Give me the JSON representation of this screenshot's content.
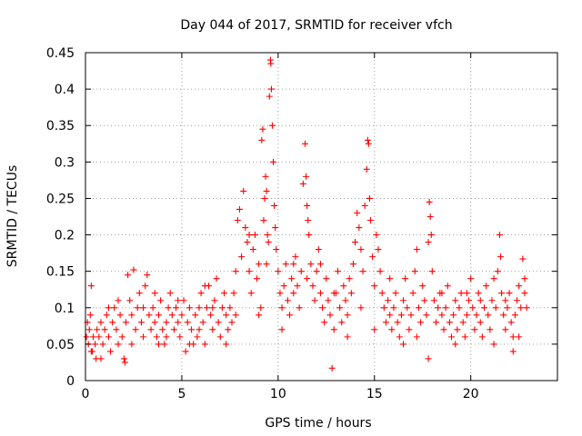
{
  "chart_data": {
    "type": "scatter",
    "title": "Day 044 of 2017, SRMTID for receiver vfch",
    "xlabel": "GPS time / hours",
    "ylabel": "SRMTID / TECUs",
    "xlim": [
      0,
      24.5
    ],
    "ylim": [
      0,
      0.45
    ],
    "xticks": [
      0,
      5,
      10,
      15,
      20
    ],
    "yticks": [
      0,
      0.05,
      0.1,
      0.15,
      0.2,
      0.25,
      0.3,
      0.35,
      0.4,
      0.45
    ],
    "xtick_labels": [
      "0",
      "5",
      "10",
      "15",
      "20"
    ],
    "ytick_labels": [
      "0",
      "0.05",
      "0.1",
      "0.15",
      "0.2",
      "0.25",
      "0.3",
      "0.35",
      "0.4",
      "0.45"
    ],
    "grid": true,
    "marker": "+",
    "color": "#ff0000",
    "series": [
      {
        "name": "SRMTID",
        "points": [
          [
            0.05,
            0.06
          ],
          [
            0.1,
            0.08
          ],
          [
            0.15,
            0.05
          ],
          [
            0.2,
            0.07
          ],
          [
            0.25,
            0.09
          ],
          [
            0.3,
            0.13
          ],
          [
            0.35,
            0.04
          ],
          [
            0.4,
            0.06
          ],
          [
            0.5,
            0.05
          ],
          [
            0.55,
            0.03
          ],
          [
            0.6,
            0.07
          ],
          [
            0.7,
            0.06
          ],
          [
            0.8,
            0.08
          ],
          [
            0.9,
            0.05
          ],
          [
            1.0,
            0.07
          ],
          [
            1.1,
            0.09
          ],
          [
            1.2,
            0.06
          ],
          [
            1.3,
            0.04
          ],
          [
            1.4,
            0.08
          ],
          [
            1.5,
            0.1
          ],
          [
            1.6,
            0.07
          ],
          [
            1.7,
            0.05
          ],
          [
            1.8,
            0.09
          ],
          [
            1.9,
            0.06
          ],
          [
            2.0,
            0.03
          ],
          [
            2.05,
            0.025
          ],
          [
            2.1,
            0.08
          ],
          [
            2.2,
            0.145
          ],
          [
            2.3,
            0.11
          ],
          [
            2.4,
            0.09
          ],
          [
            2.5,
            0.152
          ],
          [
            2.6,
            0.07
          ],
          [
            2.7,
            0.1
          ],
          [
            2.8,
            0.12
          ],
          [
            2.9,
            0.08
          ],
          [
            3.0,
            0.06
          ],
          [
            3.1,
            0.13
          ],
          [
            3.2,
            0.145
          ],
          [
            3.3,
            0.09
          ],
          [
            3.4,
            0.07
          ],
          [
            3.5,
            0.1
          ],
          [
            3.6,
            0.08
          ],
          [
            3.7,
            0.06
          ],
          [
            3.8,
            0.09
          ],
          [
            3.9,
            0.11
          ],
          [
            4.0,
            0.07
          ],
          [
            4.1,
            0.05
          ],
          [
            4.2,
            0.08
          ],
          [
            4.3,
            0.1
          ],
          [
            4.4,
            0.12
          ],
          [
            4.5,
            0.09
          ],
          [
            4.6,
            0.07
          ],
          [
            4.7,
            0.1
          ],
          [
            4.8,
            0.08
          ],
          [
            4.9,
            0.06
          ],
          [
            5.0,
            0.09
          ],
          [
            5.1,
            0.11
          ],
          [
            5.2,
            0.04
          ],
          [
            5.3,
            0.08
          ],
          [
            5.4,
            0.1
          ],
          [
            5.5,
            0.07
          ],
          [
            5.6,
            0.05
          ],
          [
            5.7,
            0.09
          ],
          [
            5.8,
            0.06
          ],
          [
            5.9,
            0.1
          ],
          [
            6.0,
            0.12
          ],
          [
            6.1,
            0.08
          ],
          [
            6.2,
            0.05
          ],
          [
            6.3,
            0.1
          ],
          [
            6.4,
            0.13
          ],
          [
            6.5,
            0.09
          ],
          [
            6.6,
            0.07
          ],
          [
            6.7,
            0.11
          ],
          [
            6.8,
            0.14
          ],
          [
            6.9,
            0.08
          ],
          [
            7.0,
            0.06
          ],
          [
            7.1,
            0.1
          ],
          [
            7.2,
            0.12
          ],
          [
            7.3,
            0.09
          ],
          [
            7.4,
            0.07
          ],
          [
            7.5,
            0.1
          ],
          [
            7.6,
            0.08
          ],
          [
            7.7,
            0.12
          ],
          [
            7.8,
            0.15
          ],
          [
            7.9,
            0.22
          ],
          [
            8.0,
            0.235
          ],
          [
            8.1,
            0.17
          ],
          [
            8.2,
            0.26
          ],
          [
            8.3,
            0.21
          ],
          [
            8.4,
            0.19
          ],
          [
            8.5,
            0.15
          ],
          [
            8.6,
            0.12
          ],
          [
            8.7,
            0.18
          ],
          [
            8.8,
            0.2
          ],
          [
            8.9,
            0.14
          ],
          [
            9.0,
            0.16
          ],
          [
            9.1,
            0.1
          ],
          [
            9.15,
            0.33
          ],
          [
            9.2,
            0.345
          ],
          [
            9.25,
            0.22
          ],
          [
            9.3,
            0.25
          ],
          [
            9.35,
            0.28
          ],
          [
            9.4,
            0.26
          ],
          [
            9.45,
            0.2
          ],
          [
            9.5,
            0.19
          ],
          [
            9.55,
            0.39
          ],
          [
            9.6,
            0.44
          ],
          [
            9.62,
            0.435
          ],
          [
            9.65,
            0.4
          ],
          [
            9.7,
            0.35
          ],
          [
            9.75,
            0.3
          ],
          [
            9.8,
            0.24
          ],
          [
            9.85,
            0.21
          ],
          [
            9.9,
            0.18
          ],
          [
            10.0,
            0.15
          ],
          [
            10.1,
            0.12
          ],
          [
            10.2,
            0.1
          ],
          [
            10.3,
            0.13
          ],
          [
            10.4,
            0.16
          ],
          [
            10.5,
            0.11
          ],
          [
            10.6,
            0.09
          ],
          [
            10.7,
            0.14
          ],
          [
            10.8,
            0.12
          ],
          [
            10.9,
            0.17
          ],
          [
            11.0,
            0.13
          ],
          [
            11.1,
            0.1
          ],
          [
            11.2,
            0.15
          ],
          [
            11.3,
            0.27
          ],
          [
            11.4,
            0.325
          ],
          [
            11.45,
            0.28
          ],
          [
            11.5,
            0.24
          ],
          [
            11.55,
            0.22
          ],
          [
            11.6,
            0.2
          ],
          [
            11.7,
            0.16
          ],
          [
            11.8,
            0.13
          ],
          [
            11.9,
            0.11
          ],
          [
            12.0,
            0.15
          ],
          [
            12.1,
            0.18
          ],
          [
            12.2,
            0.12
          ],
          [
            12.3,
            0.1
          ],
          [
            12.4,
            0.08
          ],
          [
            12.5,
            0.14
          ],
          [
            12.6,
            0.11
          ],
          [
            12.7,
            0.09
          ],
          [
            12.8,
            0.017
          ],
          [
            12.9,
            0.07
          ],
          [
            13.0,
            0.12
          ],
          [
            13.1,
            0.15
          ],
          [
            13.2,
            0.1
          ],
          [
            13.3,
            0.08
          ],
          [
            13.4,
            0.13
          ],
          [
            13.5,
            0.11
          ],
          [
            13.6,
            0.09
          ],
          [
            13.7,
            0.14
          ],
          [
            13.8,
            0.12
          ],
          [
            13.9,
            0.16
          ],
          [
            14.0,
            0.19
          ],
          [
            14.1,
            0.23
          ],
          [
            14.2,
            0.21
          ],
          [
            14.3,
            0.18
          ],
          [
            14.4,
            0.15
          ],
          [
            14.5,
            0.24
          ],
          [
            14.6,
            0.29
          ],
          [
            14.65,
            0.33
          ],
          [
            14.7,
            0.325
          ],
          [
            14.75,
            0.25
          ],
          [
            14.8,
            0.22
          ],
          [
            14.9,
            0.17
          ],
          [
            15.0,
            0.13
          ],
          [
            15.1,
            0.2
          ],
          [
            15.2,
            0.18
          ],
          [
            15.3,
            0.15
          ],
          [
            15.4,
            0.12
          ],
          [
            15.5,
            0.1
          ],
          [
            15.6,
            0.08
          ],
          [
            15.7,
            0.11
          ],
          [
            15.8,
            0.09
          ],
          [
            15.9,
            0.07
          ],
          [
            16.0,
            0.1
          ],
          [
            16.1,
            0.12
          ],
          [
            16.2,
            0.08
          ],
          [
            16.3,
            0.06
          ],
          [
            16.4,
            0.09
          ],
          [
            16.5,
            0.11
          ],
          [
            16.6,
            0.14
          ],
          [
            16.7,
            0.1
          ],
          [
            16.8,
            0.07
          ],
          [
            16.9,
            0.09
          ],
          [
            17.0,
            0.12
          ],
          [
            17.1,
            0.15
          ],
          [
            17.2,
            0.18
          ],
          [
            17.3,
            0.1
          ],
          [
            17.4,
            0.08
          ],
          [
            17.5,
            0.13
          ],
          [
            17.6,
            0.11
          ],
          [
            17.7,
            0.09
          ],
          [
            17.8,
            0.19
          ],
          [
            17.85,
            0.245
          ],
          [
            17.9,
            0.225
          ],
          [
            17.95,
            0.2
          ],
          [
            18.0,
            0.15
          ],
          [
            18.1,
            0.11
          ],
          [
            18.2,
            0.08
          ],
          [
            18.3,
            0.1
          ],
          [
            18.4,
            0.12
          ],
          [
            18.5,
            0.09
          ],
          [
            18.6,
            0.07
          ],
          [
            18.7,
            0.1
          ],
          [
            18.8,
            0.13
          ],
          [
            18.9,
            0.08
          ],
          [
            19.0,
            0.06
          ],
          [
            19.1,
            0.09
          ],
          [
            19.2,
            0.11
          ],
          [
            19.3,
            0.07
          ],
          [
            19.4,
            0.1
          ],
          [
            19.5,
            0.12
          ],
          [
            19.6,
            0.08
          ],
          [
            19.7,
            0.06
          ],
          [
            19.8,
            0.09
          ],
          [
            19.9,
            0.11
          ],
          [
            20.0,
            0.14
          ],
          [
            20.1,
            0.1
          ],
          [
            20.2,
            0.07
          ],
          [
            20.3,
            0.09
          ],
          [
            20.4,
            0.12
          ],
          [
            20.5,
            0.08
          ],
          [
            20.6,
            0.06
          ],
          [
            20.7,
            0.1
          ],
          [
            20.8,
            0.13
          ],
          [
            20.9,
            0.09
          ],
          [
            21.0,
            0.07
          ],
          [
            21.1,
            0.11
          ],
          [
            21.2,
            0.14
          ],
          [
            21.3,
            0.1
          ],
          [
            21.4,
            0.15
          ],
          [
            21.5,
            0.2
          ],
          [
            21.55,
            0.17
          ],
          [
            21.6,
            0.12
          ],
          [
            21.7,
            0.09
          ],
          [
            21.8,
            0.07
          ],
          [
            21.9,
            0.1
          ],
          [
            22.0,
            0.12
          ],
          [
            22.1,
            0.08
          ],
          [
            22.2,
            0.06
          ],
          [
            22.3,
            0.09
          ],
          [
            22.4,
            0.11
          ],
          [
            22.5,
            0.13
          ],
          [
            22.6,
            0.1
          ],
          [
            22.7,
            0.167
          ],
          [
            22.8,
            0.12
          ],
          [
            22.9,
            0.1
          ],
          [
            0.3,
            0.04
          ],
          [
            0.8,
            0.03
          ],
          [
            1.2,
            0.1
          ],
          [
            1.7,
            0.11
          ],
          [
            2.4,
            0.05
          ],
          [
            3.0,
            0.1
          ],
          [
            3.6,
            0.12
          ],
          [
            4.2,
            0.06
          ],
          [
            4.8,
            0.11
          ],
          [
            5.4,
            0.05
          ],
          [
            5.9,
            0.07
          ],
          [
            6.6,
            0.1
          ],
          [
            7.3,
            0.05
          ],
          [
            7.8,
            0.09
          ],
          [
            8.5,
            0.2
          ],
          [
            9.0,
            0.09
          ],
          [
            9.4,
            0.16
          ],
          [
            10.2,
            0.07
          ],
          [
            10.8,
            0.16
          ],
          [
            11.5,
            0.14
          ],
          [
            12.2,
            0.16
          ],
          [
            12.9,
            0.12
          ],
          [
            13.6,
            0.06
          ],
          [
            14.3,
            0.1
          ],
          [
            15.0,
            0.07
          ],
          [
            15.8,
            0.14
          ],
          [
            16.5,
            0.05
          ],
          [
            17.2,
            0.06
          ],
          [
            17.8,
            0.03
          ],
          [
            18.5,
            0.12
          ],
          [
            19.2,
            0.05
          ],
          [
            19.8,
            0.12
          ],
          [
            20.5,
            0.11
          ],
          [
            21.2,
            0.05
          ],
          [
            21.8,
            0.11
          ],
          [
            22.5,
            0.06
          ],
          [
            22.8,
            0.14
          ],
          [
            22.2,
            0.04
          ],
          [
            3.8,
            0.05
          ],
          [
            6.2,
            0.13
          ]
        ]
      }
    ]
  }
}
